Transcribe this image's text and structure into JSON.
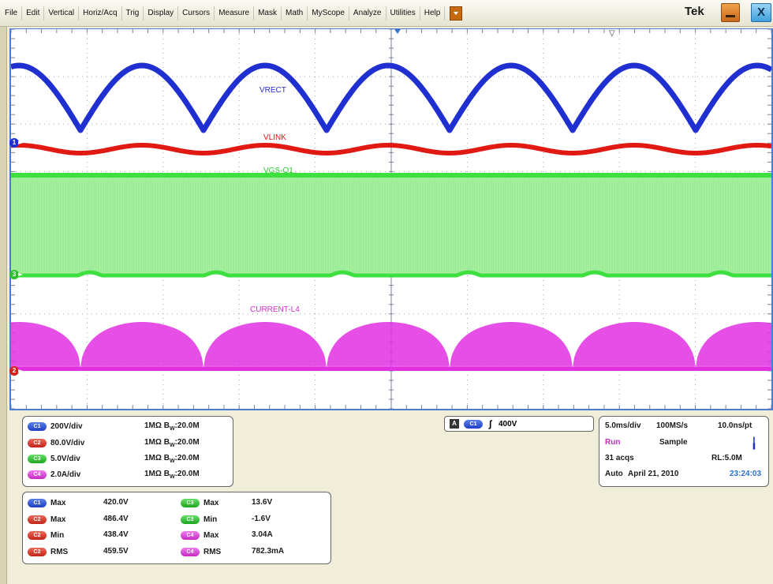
{
  "menu": [
    "File",
    "Edit",
    "Vertical",
    "Horiz/Acq",
    "Trig",
    "Display",
    "Cursors",
    "Measure",
    "Mask",
    "Math",
    "MyScope",
    "Analyze",
    "Utilities",
    "Help"
  ],
  "brand": "Tek",
  "window_controls": {
    "minimize_icon": "minimize-icon",
    "close_label": "X"
  },
  "waveform_labels": {
    "vrect": {
      "text": "VRECT",
      "color": "#2b2bd8"
    },
    "vlink": {
      "text": "VLINK",
      "color": "#e01010"
    },
    "vgs": {
      "text": "VGS-Q1",
      "color": "#28d028"
    },
    "current": {
      "text": "CURRENT-L4",
      "color": "#d030d0"
    }
  },
  "channel_markers": {
    "c1": "1",
    "c2": "2",
    "c3": "3"
  },
  "channel_settings": [
    {
      "channel": "C1",
      "scale": "200V/div",
      "coupling": "1MΩ",
      "bw_prefix": "B",
      "bw_sub": "W",
      "bw": ":20.0M"
    },
    {
      "channel": "C2",
      "scale": "80.0V/div",
      "coupling": "1MΩ",
      "bw_prefix": "B",
      "bw_sub": "W",
      "bw": ":20.0M"
    },
    {
      "channel": "C3",
      "scale": "5.0V/div",
      "coupling": "1MΩ",
      "bw_prefix": "B",
      "bw_sub": "W",
      "bw": ":20.0M"
    },
    {
      "channel": "C4",
      "scale": "2.0A/div",
      "coupling": "1MΩ",
      "bw_prefix": "B",
      "bw_sub": "W",
      "bw": ":20.0M"
    }
  ],
  "trigger": {
    "source_box": "A",
    "channel": "C1",
    "level": "400V"
  },
  "acquisition": {
    "timebase": "5.0ms/div",
    "sample_rate": "100MS/s",
    "resolution": "10.0ns/pt",
    "state": "Run",
    "mode": "Sample",
    "acqs": "31 acqs",
    "record_length": "RL:5.0M",
    "trigger_mode": "Auto",
    "date": "April 21, 2010",
    "time": "23:24:03"
  },
  "measurements": [
    {
      "channel": "C1",
      "name": "Max",
      "value": "420.0V"
    },
    {
      "channel": "C2",
      "name": "Max",
      "value": "486.4V"
    },
    {
      "channel": "C2",
      "name": "Min",
      "value": "438.4V"
    },
    {
      "channel": "C2",
      "name": "RMS",
      "value": "459.5V"
    },
    {
      "channel": "C3",
      "name": "Max",
      "value": "13.6V"
    },
    {
      "channel": "C3",
      "name": "Min",
      "value": "-1.6V"
    },
    {
      "channel": "C4",
      "name": "Max",
      "value": "3.04A"
    },
    {
      "channel": "C4",
      "name": "RMS",
      "value": "782.3mA"
    }
  ],
  "colors": {
    "c1": "#1f2fd0",
    "c2": "#e01a12",
    "c3": "#3ee040",
    "c3_fill": "#a6f0a0",
    "c4": "#e030e0",
    "grid_border": "#4a7bd5",
    "run": "#c030c0",
    "time": "#2b6fd0"
  }
}
